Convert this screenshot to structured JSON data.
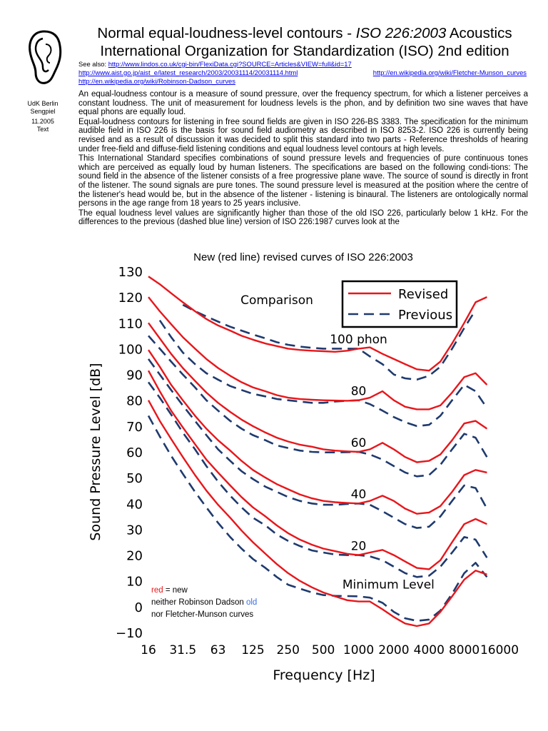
{
  "header": {
    "title_line1_a": "Normal equal-loudness-level contours - ",
    "title_line1_italic": "ISO 226:2003",
    "title_line1_b": " Acoustics",
    "title_line2": "International Organization for Standardization (ISO) 2nd edition"
  },
  "sidebar": {
    "line1": "UdK Berlin",
    "line2": "Sengpiel",
    "line3": "11.2005",
    "line4": "Text"
  },
  "links": {
    "see_also": "See also:",
    "link1": "http://www.lindos.co.uk/cgi-bin/FlexiData.cgi?SOURCE=Articles&VIEW=full&id=17",
    "link2": "http://www.aist.go.jp/aist_e/latest_research/2003/20031114/20031114.html",
    "link3": "http://en.wikipedia.org/wiki/Fletcher-Munson_curves",
    "link4": "http://en.wikipedia.org/wiki/Robinson-Dadson_curves"
  },
  "body": {
    "p1": "An equal-loudness contour is a measure of sound pressure, over the frequency spectrum, for which a listener perceives a constant loudness. The unit of measurement for loudness levels is the phon, and by definition two sine waves that have equal phons are equally loud.",
    "p2": "Equal-loudness contours for listening in free sound fields are given in ISO 226-BS 3383. The specification for the minimum audible field in ISO 226 is the basis for sound field audiometry as described in ISO 8253-2. ISO 226 is currently being revised and as a result of discussion it was decided to split this standard into two parts - Reference thresholds of hearing under free-field and diffuse-field listening conditions and equal loudness level contours at high levels.",
    "p3": "This International Standard specifies combinations of sound pressure levels and frequencies of pure continuous tones which are perceived as equally loud by human listeners. The specifications are based on the following condi-tions: The sound field in the absence of the listener consists of a free progressive plane wave. The source of sound is directly in front of the listener. The sound signals are pure tones. The sound pressure level is measured at the position where the centre of the listener's head would be, but in the absence of the listener - listening is binaural. The listeners are ontologically normal persons in the age range from 18 years to 25 years inclusive.",
    "p4": "The equal loudness level values are significantly higher than those of the old ISO 226, particularly below 1 kHz. For the differences to the previous (dashed blue line) version of ISO 226:1987 curves look at the"
  },
  "chart_title": "New (red line) revised curves of ISO 226:2003",
  "chart_data": {
    "type": "line",
    "xlabel": "Frequency [Hz]",
    "ylabel": "Sound Pressure Level [dB]",
    "x_scale": "log",
    "x_ticks": [
      "16",
      "31.5",
      "63",
      "125",
      "250",
      "500",
      "1000",
      "2000",
      "4000",
      "8000",
      "16000"
    ],
    "x_tick_values": [
      16,
      31.5,
      63,
      125,
      250,
      500,
      1000,
      2000,
      4000,
      8000,
      16000
    ],
    "y_ticks": [
      "130",
      "120",
      "110",
      "100",
      "90",
      "80",
      "70",
      "60",
      "50",
      "40",
      "30",
      "20",
      "10",
      "0",
      "−10"
    ],
    "y_tick_values": [
      130,
      120,
      110,
      100,
      90,
      80,
      70,
      60,
      50,
      40,
      30,
      20,
      10,
      0,
      -10
    ],
    "ylim": [
      -10,
      130
    ],
    "xlim": [
      16,
      16000
    ],
    "annotation": "Comparison",
    "contour_labels": [
      {
        "text": "100 phon",
        "x": 1000,
        "y": 102
      },
      {
        "text": "80",
        "x": 1000,
        "y": 82
      },
      {
        "text": "60",
        "x": 1000,
        "y": 62
      },
      {
        "text": "40",
        "x": 1000,
        "y": 42
      },
      {
        "text": "20",
        "x": 1000,
        "y": 22
      },
      {
        "text": "Minimum Level",
        "x": 1800,
        "y": 7
      }
    ],
    "legend": {
      "position": "top-right",
      "entries": [
        "Revised",
        "Previous"
      ]
    },
    "note": {
      "red_word": "red",
      "line1_rest": " = new",
      "line2_a": "neither Robinson Dadson ",
      "line2_old": "old",
      "line3": "nor Fletcher-Munson curves"
    },
    "colors": {
      "revised": "#e8161b",
      "previous": "#1f3a6e",
      "old_word": "#3b6fe0"
    },
    "freqs": [
      16,
      20,
      25,
      31.5,
      40,
      50,
      63,
      80,
      100,
      125,
      160,
      200,
      250,
      315,
      400,
      500,
      630,
      800,
      1000,
      1250,
      1600,
      2000,
      2500,
      3150,
      4000,
      5000,
      6300,
      8000,
      10000,
      12500
    ],
    "series": [
      {
        "name": "Revised",
        "kind": "revised",
        "level": 100,
        "values": [
          128,
          125,
          121.5,
          118,
          114.5,
          111.5,
          109,
          107,
          105,
          103.5,
          102,
          101,
          100,
          99.5,
          99.2,
          99,
          98.8,
          99.2,
          100,
          100.5,
          98,
          96,
          94,
          92,
          91.5,
          95,
          102,
          110,
          118,
          120
        ]
      },
      {
        "name": "Revised",
        "kind": "revised",
        "level": 80,
        "values": [
          120,
          114.5,
          109.5,
          104.5,
          100,
          96,
          92.5,
          89.5,
          87,
          85,
          83.5,
          82,
          81,
          80.5,
          80.2,
          80,
          79.9,
          79.8,
          80,
          81,
          83.5,
          80,
          77.5,
          76.5,
          76.5,
          78,
          83,
          89,
          90.5,
          86
        ]
      },
      {
        "name": "Revised",
        "kind": "revised",
        "level": 60,
        "values": [
          110,
          104,
          98,
          92.5,
          87.5,
          83,
          79,
          75.5,
          72.5,
          70,
          67.5,
          65.5,
          64,
          62.8,
          62,
          61,
          60.5,
          60.2,
          60,
          61,
          63.5,
          61,
          58,
          56,
          56.5,
          59,
          64.5,
          71,
          72,
          69
        ]
      },
      {
        "name": "Revised",
        "kind": "revised",
        "level": 40,
        "values": [
          99.5,
          93,
          86,
          80,
          74,
          69,
          64.5,
          60.5,
          56.5,
          53,
          50,
          47.5,
          45.5,
          43.5,
          42,
          41,
          40.5,
          40.2,
          40,
          41,
          43,
          41,
          38,
          36,
          36.5,
          39,
          44.5,
          51,
          53,
          52
        ]
      },
      {
        "name": "Revised",
        "kind": "revised",
        "level": 20,
        "values": [
          91.5,
          83.5,
          76,
          69.5,
          63,
          57,
          52,
          47,
          42.5,
          38.5,
          35,
          31.5,
          28.5,
          26,
          24,
          22.5,
          21.5,
          20.5,
          20,
          21,
          22,
          20,
          17.5,
          15,
          14.5,
          18,
          25,
          32,
          34,
          32
        ]
      },
      {
        "name": "Revised",
        "kind": "revised",
        "level": 0,
        "values": [
          80,
          72,
          65,
          58,
          51,
          45,
          39.5,
          34.5,
          29.5,
          25,
          20.5,
          16.5,
          13,
          10,
          7.5,
          5.5,
          4,
          2.5,
          2,
          2,
          -1,
          -4,
          -6.5,
          -7.5,
          -6.5,
          -2,
          4,
          10.5,
          14,
          12.5
        ]
      },
      {
        "name": "Previous",
        "kind": "previous",
        "level": 100,
        "values": [
          null,
          null,
          null,
          117,
          114.5,
          112.5,
          110.5,
          108.5,
          107,
          105.5,
          104,
          102.5,
          101.5,
          100.8,
          100.3,
          100,
          100,
          100,
          100,
          97,
          94,
          90,
          88.5,
          88,
          89.5,
          93,
          100,
          108,
          115,
          null
        ]
      },
      {
        "name": "Previous",
        "kind": "previous",
        "level": 80,
        "values": [
          null,
          111,
          104.5,
          98.5,
          94,
          90.5,
          88,
          85.5,
          84,
          82.5,
          81.5,
          80.5,
          80,
          79.5,
          79,
          79,
          79.5,
          79.8,
          80,
          78.5,
          76,
          73.5,
          71.5,
          70,
          70.5,
          74,
          80,
          86,
          83.5,
          77
        ]
      },
      {
        "name": "Previous",
        "kind": "previous",
        "level": 60,
        "values": [
          105,
          100,
          95,
          90,
          85,
          80,
          76,
          72,
          69,
          66.5,
          64.5,
          62.5,
          61.5,
          60.5,
          60,
          59.8,
          59.8,
          59.9,
          60,
          59,
          57,
          54.5,
          52,
          50.5,
          51,
          55,
          61,
          67,
          65.5,
          58
        ]
      },
      {
        "name": "Previous",
        "kind": "previous",
        "level": 40,
        "values": [
          96,
          90,
          84,
          78,
          72,
          66.5,
          61,
          56.5,
          52.5,
          49.5,
          46.5,
          44.5,
          42.5,
          41,
          40,
          39.5,
          39.5,
          39.8,
          40,
          39.5,
          37,
          34.5,
          32,
          30.5,
          31,
          35,
          41,
          47,
          46,
          38
        ]
      },
      {
        "name": "Previous",
        "kind": "previous",
        "level": 20,
        "values": [
          87,
          81,
          74.5,
          67.5,
          61,
          54.5,
          48.5,
          43,
          38.5,
          34.5,
          31.5,
          28,
          25.5,
          23.5,
          21.8,
          21,
          20.2,
          20,
          20,
          19.5,
          18,
          15.5,
          13,
          11.5,
          12,
          15.5,
          21,
          27,
          26,
          19
        ]
      },
      {
        "name": "Previous",
        "kind": "previous",
        "level": 0,
        "values": [
          74,
          66,
          58.5,
          51.5,
          44.5,
          38.5,
          32.5,
          27,
          22.5,
          18.5,
          15,
          11.5,
          8.5,
          7,
          5.5,
          4.5,
          4.2,
          4.1,
          4,
          3.5,
          1.5,
          -2,
          -4.5,
          -5.5,
          -5,
          -1.5,
          5,
          13,
          17,
          11.5
        ]
      }
    ]
  }
}
